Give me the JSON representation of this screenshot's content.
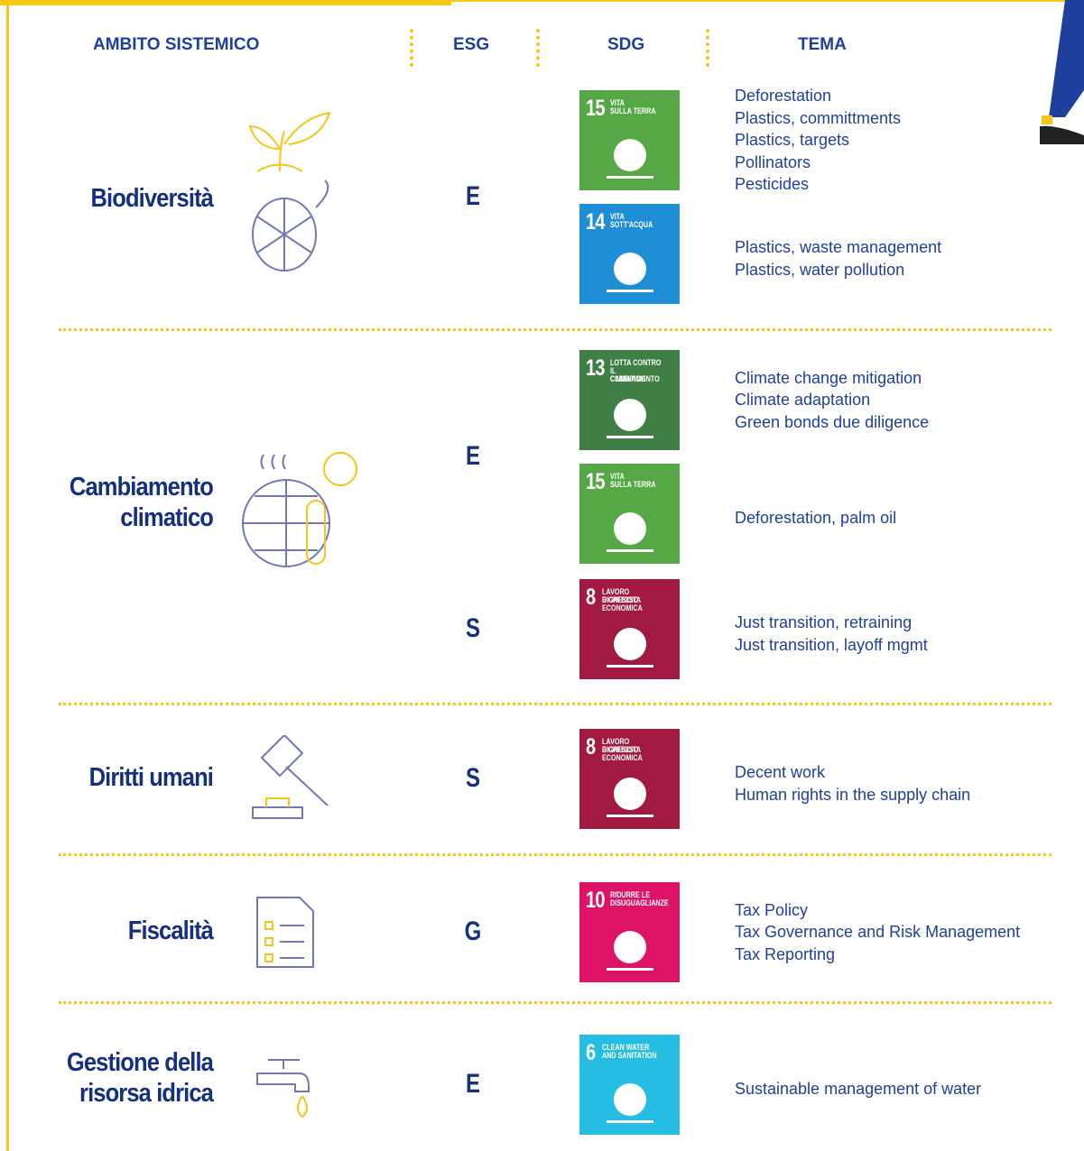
{
  "header": {
    "ambito": "AMBITO SISTEMICO",
    "esg": "ESG",
    "sdg": "SDG",
    "tema": "TEMA"
  },
  "sections": [
    {
      "title": [
        "Biodiversità"
      ],
      "groups": [
        {
          "esg": "E",
          "sdgs": [
            {
              "number": "15",
              "label": [
                "VITA",
                "SULLA TERRA"
              ],
              "color": "#56a846",
              "themes": [
                "Deforestation",
                "Plastics, committments",
                "Plastics, targets",
                "Pollinators",
                "Pesticides"
              ]
            },
            {
              "number": "14",
              "label": [
                "VITA",
                "SOTT'ACQUA"
              ],
              "color": "#1e8fd5",
              "themes": [
                "Plastics, waste management",
                "Plastics, water pollution"
              ]
            }
          ]
        }
      ]
    },
    {
      "title": [
        "Cambiamento",
        "climatico"
      ],
      "groups": [
        {
          "esg": "E",
          "sdgs": [
            {
              "number": "13",
              "label": [
                "LOTTA CONTRO",
                "IL CAMBIAMENTO",
                "CLIMATICO"
              ],
              "color": "#3f7e44",
              "themes": [
                "Climate change mitigation",
                "Climate adaptation",
                "Green bonds due diligence"
              ]
            },
            {
              "number": "15",
              "label": [
                "VITA",
                "SULLA TERRA"
              ],
              "color": "#56a846",
              "themes": [
                "Deforestation, palm oil"
              ]
            }
          ]
        },
        {
          "esg": "S",
          "sdgs": [
            {
              "number": "8",
              "label": [
                "LAVORO DIGNITOSO",
                "E CRESCITA",
                "ECONOMICA"
              ],
              "color": "#a21942",
              "themes": [
                "Just transition, retraining",
                "Just transition, layoff mgmt"
              ]
            }
          ]
        }
      ]
    },
    {
      "title": [
        "Diritti umani"
      ],
      "groups": [
        {
          "esg": "S",
          "sdgs": [
            {
              "number": "8",
              "label": [
                "LAVORO DIGNITOSO",
                "E CRESCITA",
                "ECONOMICA"
              ],
              "color": "#a21942",
              "themes": [
                "Decent work",
                "Human rights in the supply chain"
              ]
            }
          ]
        }
      ]
    },
    {
      "title": [
        "Fiscalità"
      ],
      "groups": [
        {
          "esg": "G",
          "sdgs": [
            {
              "number": "10",
              "label": [
                "RIDURRE LE",
                "DISUGUAGLIANZE"
              ],
              "color": "#dd1367",
              "themes": [
                "Tax Policy",
                "Tax Governance and Risk Management",
                "Tax Reporting"
              ]
            }
          ]
        }
      ]
    },
    {
      "title": [
        "Gestione della",
        "risorsa idrica"
      ],
      "groups": [
        {
          "esg": "E",
          "sdgs": [
            {
              "number": "6",
              "label": [
                "CLEAN WATER",
                "AND SANITATION"
              ],
              "color": "#26bde2",
              "themes": [
                "Sustainable management of water"
              ]
            }
          ]
        }
      ]
    }
  ]
}
